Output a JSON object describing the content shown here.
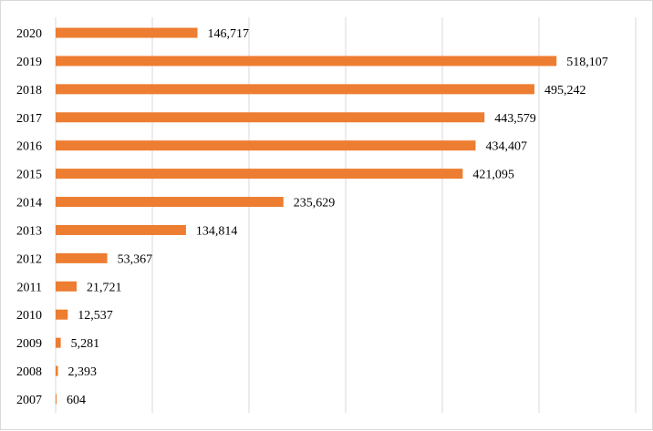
{
  "chart_data": {
    "type": "bar",
    "orientation": "horizontal",
    "title": "",
    "xlabel": "",
    "ylabel": "",
    "categories": [
      "2020",
      "2019",
      "2018",
      "2017",
      "2016",
      "2015",
      "2014",
      "2013",
      "2012",
      "2011",
      "2010",
      "2009",
      "2008",
      "2007"
    ],
    "values": [
      146717,
      518107,
      495242,
      443579,
      434407,
      421095,
      235629,
      134814,
      53367,
      21721,
      12537,
      5281,
      2393,
      604
    ],
    "labels": [
      "146,717",
      "518,107",
      "495,242",
      "443,579",
      "434,407",
      "421,095",
      "235,629",
      "134,814",
      "53,367",
      "21,721",
      "12,537",
      "5,281",
      "2,393",
      "604"
    ],
    "xlim": [
      0,
      600000
    ],
    "grid_step": 100000,
    "grid": true,
    "legend": "none",
    "bar_color": "#ED7D31",
    "grid_color": "#D9D9D9"
  }
}
